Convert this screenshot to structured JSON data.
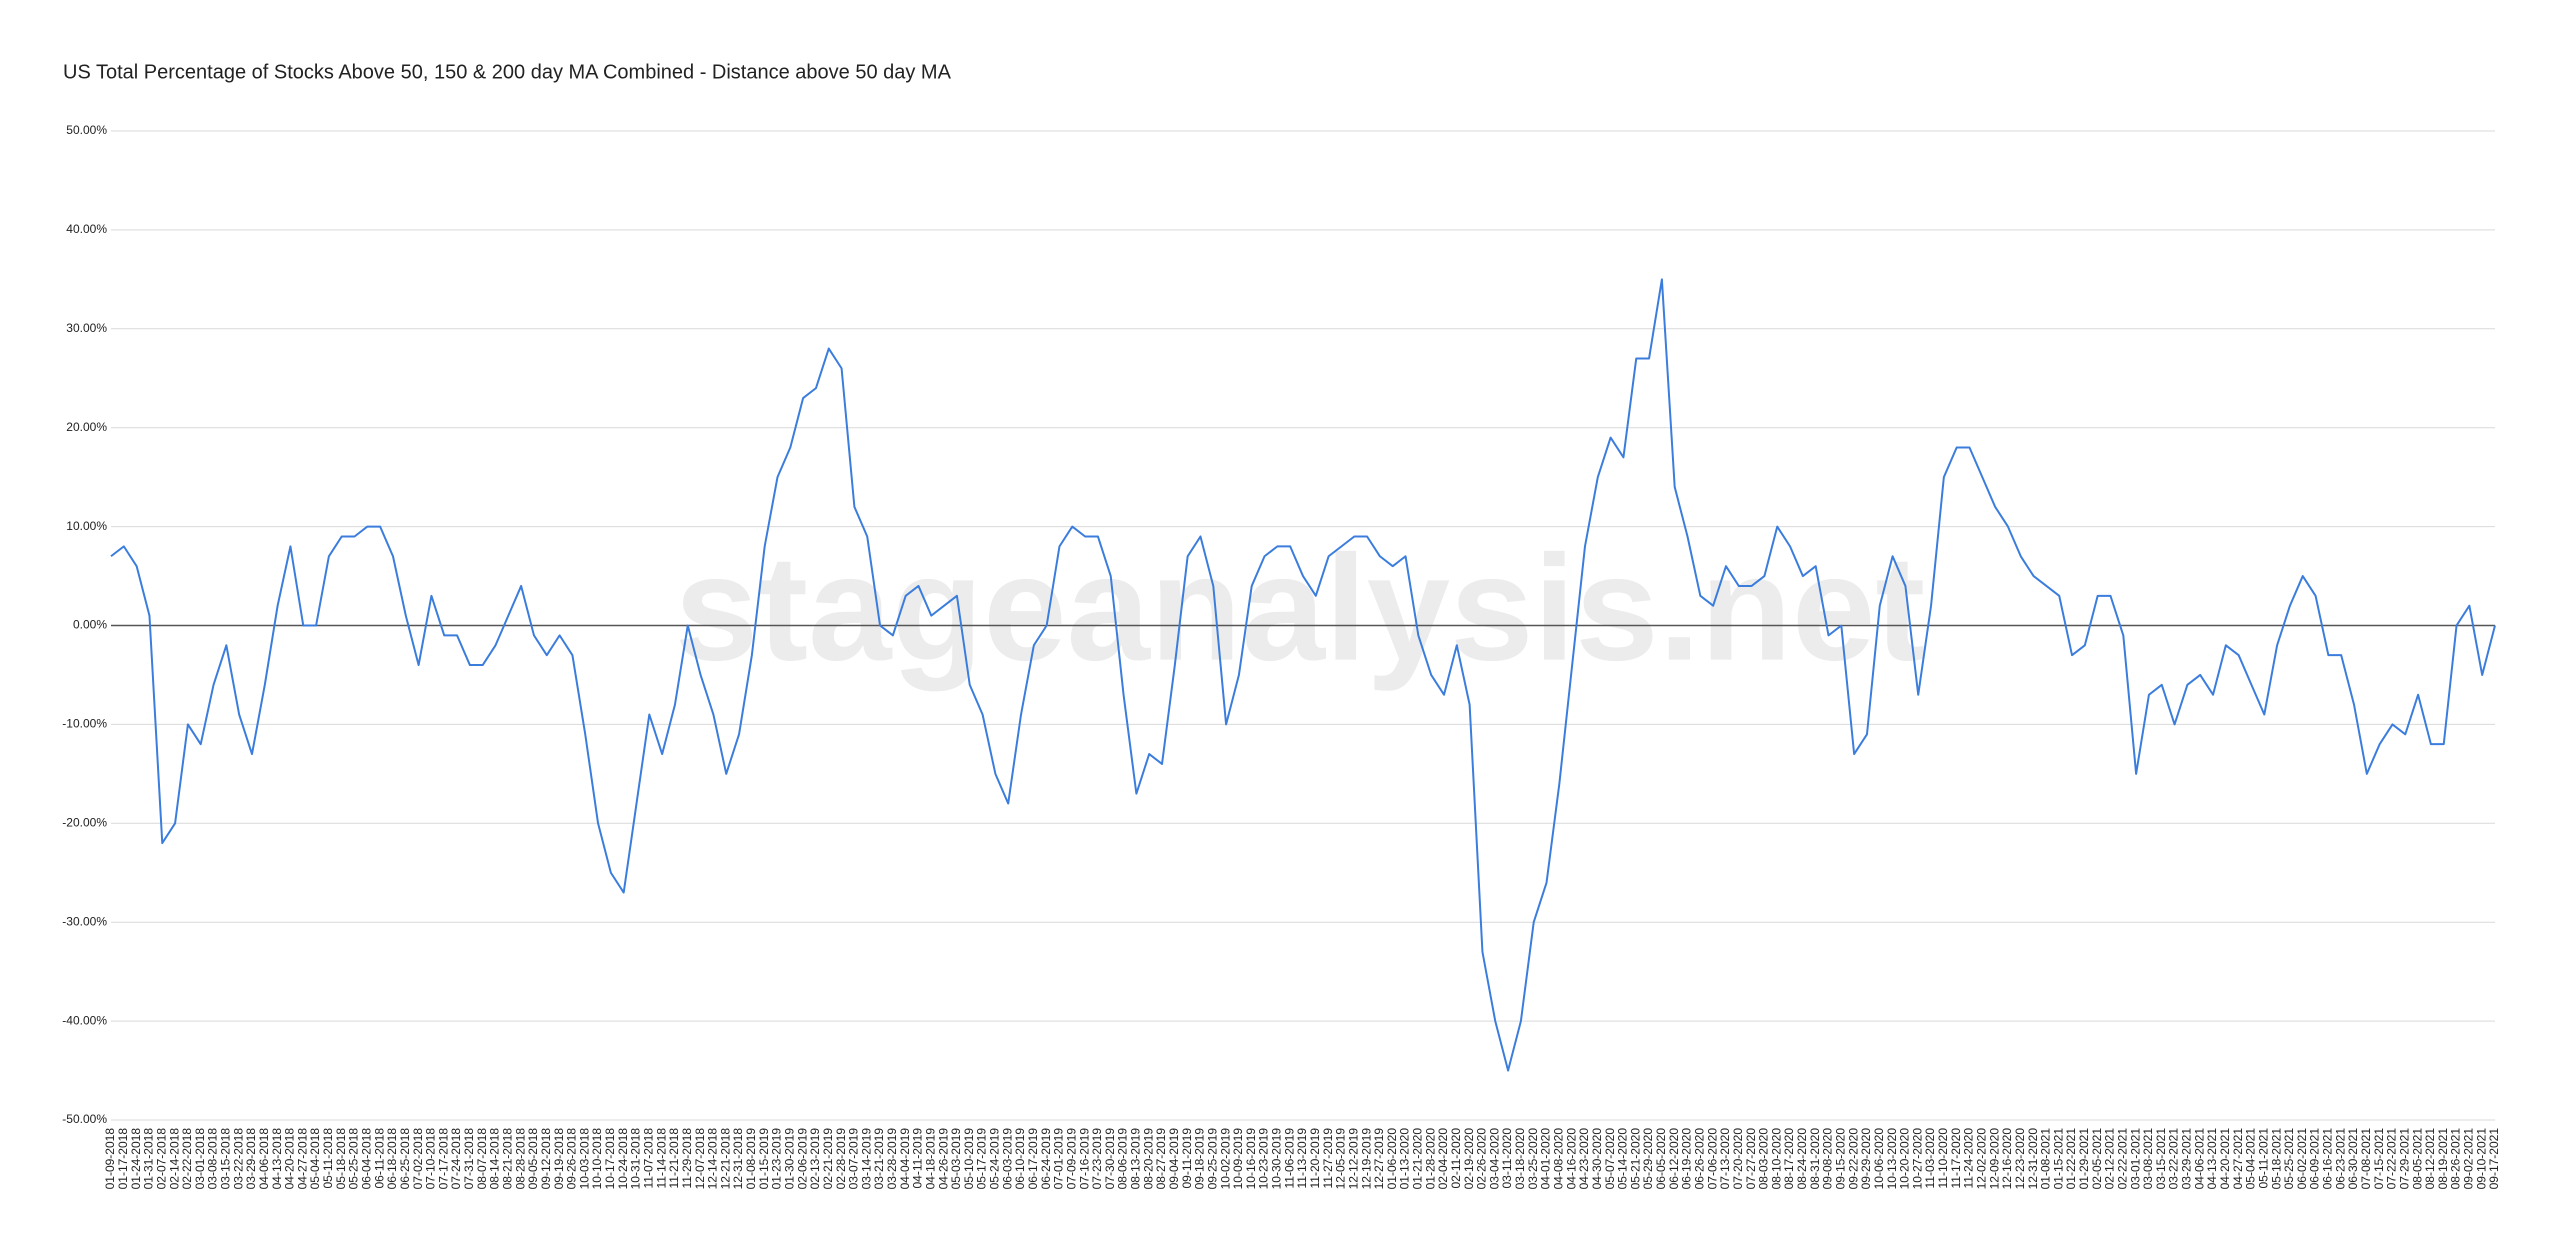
{
  "chart_data": {
    "type": "line",
    "title": "US Total Percentage of Stocks Above 50, 150 & 200 day MA Combined - Distance above 50 day MA",
    "watermark": "stageanalysis.net",
    "color": "#3b7ddd",
    "grid": true,
    "ylim": [
      -50,
      50
    ],
    "yticks": [
      {
        "value": 50,
        "label": "50.00%"
      },
      {
        "value": 40,
        "label": "40.00%"
      },
      {
        "value": 30,
        "label": "30.00%"
      },
      {
        "value": 20,
        "label": "20.00%"
      },
      {
        "value": 10,
        "label": "10.00%"
      },
      {
        "value": 0,
        "label": "0.00%"
      },
      {
        "value": -10,
        "label": "-10.00%"
      },
      {
        "value": -20,
        "label": "-20.00%"
      },
      {
        "value": -30,
        "label": "-30.00%"
      },
      {
        "value": -40,
        "label": "-40.00%"
      },
      {
        "value": -50,
        "label": "-50.00%"
      }
    ],
    "categories": [
      "01-09-2018",
      "01-17-2018",
      "01-24-2018",
      "01-31-2018",
      "02-07-2018",
      "02-14-2018",
      "02-22-2018",
      "03-01-2018",
      "03-08-2018",
      "03-15-2018",
      "03-22-2018",
      "03-29-2018",
      "04-06-2018",
      "04-13-2018",
      "04-20-2018",
      "04-27-2018",
      "05-04-2018",
      "05-11-2018",
      "05-18-2018",
      "05-25-2018",
      "06-04-2018",
      "06-11-2018",
      "06-18-2018",
      "06-25-2018",
      "07-02-2018",
      "07-10-2018",
      "07-17-2018",
      "07-24-2018",
      "07-31-2018",
      "08-07-2018",
      "08-14-2018",
      "08-21-2018",
      "08-28-2018",
      "09-05-2018",
      "09-12-2018",
      "09-19-2018",
      "09-26-2018",
      "10-03-2018",
      "10-10-2018",
      "10-17-2018",
      "10-24-2018",
      "10-31-2018",
      "11-07-2018",
      "11-14-2018",
      "11-21-2018",
      "11-29-2018",
      "12-07-2018",
      "12-14-2018",
      "12-21-2018",
      "12-31-2018",
      "01-08-2019",
      "01-15-2019",
      "01-23-2019",
      "01-30-2019",
      "02-06-2019",
      "02-13-2019",
      "02-21-2019",
      "02-28-2019",
      "03-07-2019",
      "03-14-2019",
      "03-21-2019",
      "03-28-2019",
      "04-04-2019",
      "04-11-2019",
      "04-18-2019",
      "04-26-2019",
      "05-03-2019",
      "05-10-2019",
      "05-17-2019",
      "05-24-2019",
      "06-03-2019",
      "06-10-2019",
      "06-17-2019",
      "06-24-2019",
      "07-01-2019",
      "07-09-2019",
      "07-16-2019",
      "07-23-2019",
      "07-30-2019",
      "08-06-2019",
      "08-13-2019",
      "08-20-2019",
      "08-27-2019",
      "09-04-2019",
      "09-11-2019",
      "09-18-2019",
      "09-25-2019",
      "10-02-2019",
      "10-09-2019",
      "10-16-2019",
      "10-23-2019",
      "10-30-2019",
      "11-06-2019",
      "11-13-2019",
      "11-20-2019",
      "11-27-2019",
      "12-05-2019",
      "12-12-2019",
      "12-19-2019",
      "12-27-2019",
      "01-06-2020",
      "01-13-2020",
      "01-21-2020",
      "01-28-2020",
      "02-04-2020",
      "02-11-2020",
      "02-19-2020",
      "02-26-2020",
      "03-04-2020",
      "03-11-2020",
      "03-18-2020",
      "03-25-2020",
      "04-01-2020",
      "04-08-2020",
      "04-16-2020",
      "04-23-2020",
      "04-30-2020",
      "05-07-2020",
      "05-14-2020",
      "05-21-2020",
      "05-29-2020",
      "06-05-2020",
      "06-12-2020",
      "06-19-2020",
      "06-26-2020",
      "07-06-2020",
      "07-13-2020",
      "07-20-2020",
      "07-27-2020",
      "08-03-2020",
      "08-10-2020",
      "08-17-2020",
      "08-24-2020",
      "08-31-2020",
      "09-08-2020",
      "09-15-2020",
      "09-22-2020",
      "09-29-2020",
      "10-06-2020",
      "10-13-2020",
      "10-20-2020",
      "10-27-2020",
      "11-03-2020",
      "11-10-2020",
      "11-17-2020",
      "11-24-2020",
      "12-02-2020",
      "12-09-2020",
      "12-16-2020",
      "12-23-2020",
      "12-31-2020",
      "01-08-2021",
      "01-15-2021",
      "01-22-2021",
      "01-29-2021",
      "02-05-2021",
      "02-12-2021",
      "02-22-2021",
      "03-01-2021",
      "03-08-2021",
      "03-15-2021",
      "03-22-2021",
      "03-29-2021",
      "04-06-2021",
      "04-13-2021",
      "04-20-2021",
      "04-27-2021",
      "05-04-2021",
      "05-11-2021",
      "05-18-2021",
      "05-25-2021",
      "06-02-2021",
      "06-09-2021",
      "06-16-2021",
      "06-23-2021",
      "06-30-2021",
      "07-08-2021",
      "07-15-2021",
      "07-22-2021",
      "07-29-2021",
      "08-05-2021",
      "08-12-2021",
      "08-19-2021",
      "08-26-2021",
      "09-02-2021",
      "09-10-2021",
      "09-17-2021"
    ],
    "values": [
      7,
      8,
      6,
      1,
      -22,
      -20,
      -10,
      -12,
      -6,
      -2,
      -9,
      -13,
      -6,
      2,
      8,
      0,
      0,
      7,
      9,
      9,
      10,
      10,
      7,
      1,
      -4,
      3,
      -1,
      -1,
      -4,
      -4,
      -2,
      1,
      4,
      -1,
      -3,
      -1,
      -3,
      -11,
      -20,
      -25,
      -27,
      -18,
      -9,
      -13,
      -8,
      0,
      -5,
      -9,
      -15,
      -11,
      -3,
      8,
      15,
      18,
      23,
      24,
      28,
      26,
      12,
      9,
      0,
      -1,
      3,
      4,
      1,
      2,
      3,
      -6,
      -9,
      -15,
      -18,
      -9,
      -2,
      0,
      8,
      10,
      9,
      9,
      5,
      -7,
      -17,
      -13,
      -14,
      -4,
      7,
      9,
      4,
      -10,
      -5,
      4,
      7,
      8,
      8,
      5,
      3,
      7,
      8,
      9,
      9,
      7,
      6,
      7,
      -1,
      -5,
      -7,
      -2,
      -8,
      -33,
      -40,
      -45,
      -40,
      -30,
      -26,
      -16,
      -4,
      8,
      15,
      19,
      17,
      27,
      27,
      35,
      14,
      9,
      3,
      2,
      6,
      4,
      4,
      5,
      10,
      8,
      5,
      6,
      -1,
      0,
      -13,
      -11,
      2,
      7,
      4,
      -7,
      2,
      15,
      18,
      18,
      15,
      12,
      10,
      7,
      5,
      4,
      3,
      -3,
      -2,
      3,
      3,
      -1,
      -15,
      -7,
      -6,
      -10,
      -6,
      -5,
      -7,
      -2,
      -3,
      -6,
      -9,
      -2,
      2,
      5,
      3,
      -3,
      -3,
      -8,
      -15,
      -12,
      -10,
      -11,
      -7,
      -12,
      -12,
      0,
      2,
      -5,
      0
    ]
  }
}
